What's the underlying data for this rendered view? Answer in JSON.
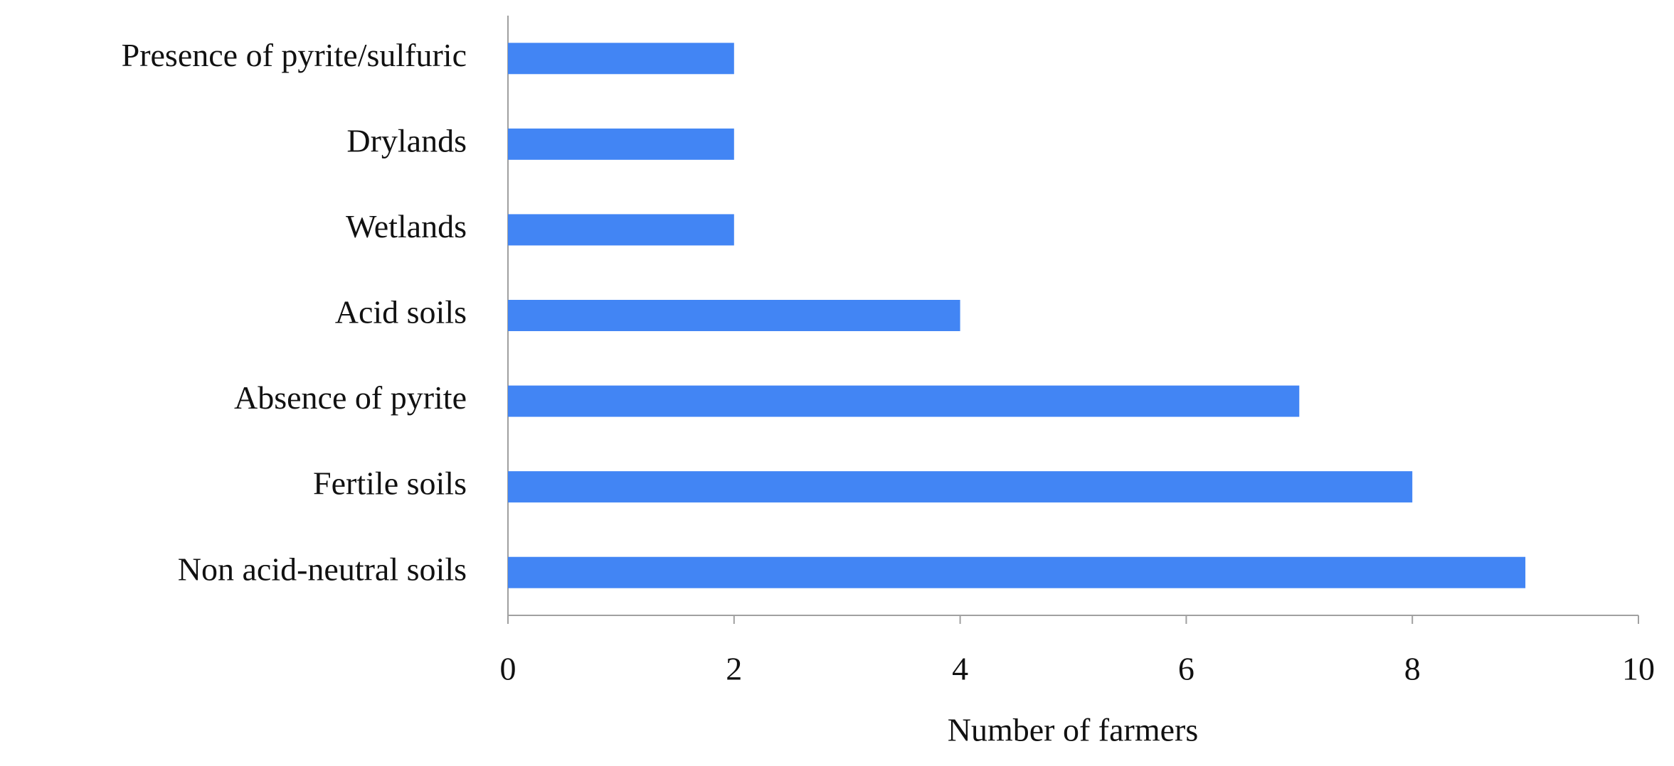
{
  "chart_data": {
    "type": "hbar",
    "categories": [
      "Presence of pyrite/sulfuric",
      "Drylands",
      "Wetlands",
      "Acid soils",
      "Absence of pyrite",
      "Fertile soils",
      "Non acid-neutral soils"
    ],
    "values": [
      2,
      2,
      2,
      4,
      7,
      8,
      9
    ],
    "color": "#4285f4",
    "x_label": "Number of farmers",
    "xlim": [
      0,
      10
    ],
    "xticks": [
      0,
      2,
      4,
      6,
      8,
      10
    ],
    "grid": false
  }
}
